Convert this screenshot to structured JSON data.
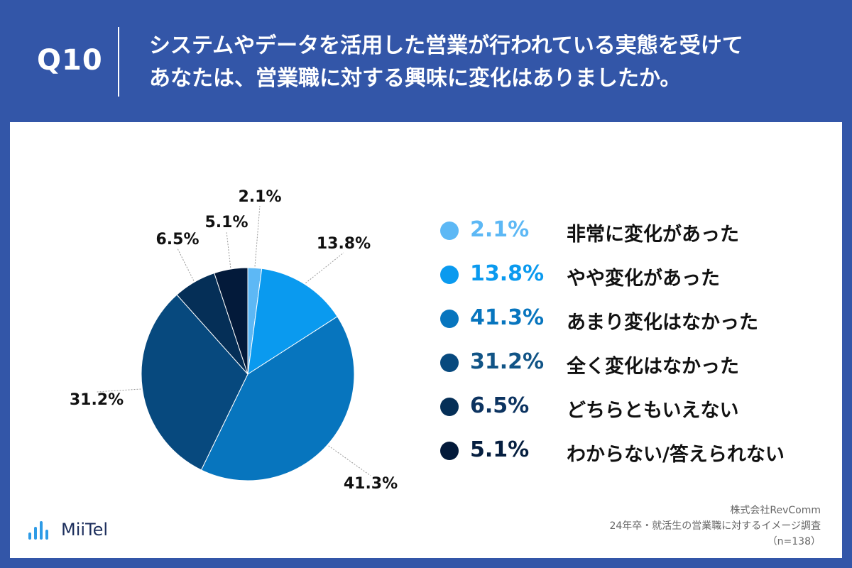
{
  "header": {
    "question_label": "Q10",
    "title_line1": "システムやデータを活用した営業が行われている実態を受けて",
    "title_line2": "あなたは、営業職に対する興味に変化はありましたか。"
  },
  "chart_data": {
    "type": "pie",
    "categories": [
      "非常に変化があった",
      "やや変化があった",
      "あまり変化はなかった",
      "全く変化はなかった",
      "どちらともいえない",
      "わからない/答えられない"
    ],
    "values": [
      2.1,
      13.8,
      41.3,
      31.2,
      6.5,
      5.1
    ],
    "labels": [
      "2.1%",
      "13.8%",
      "41.3%",
      "31.2%",
      "6.5%",
      "5.1%"
    ],
    "colors": [
      "#5DB8F5",
      "#0A9AEF",
      "#0775BE",
      "#07497E",
      "#052F57",
      "#031A3A"
    ],
    "legend_text_colors": [
      "#5DB8F5",
      "#0A9AEF",
      "#0775BE",
      "#115486",
      "#0C3360",
      "#061F40"
    ],
    "legend_placement": "right"
  },
  "logo": {
    "text": "MiiTel"
  },
  "source": {
    "line1": "株式会社RevComm",
    "line2": "24年卒・就活生の営業職に対するイメージ調査",
    "line3": "（n=138）"
  }
}
